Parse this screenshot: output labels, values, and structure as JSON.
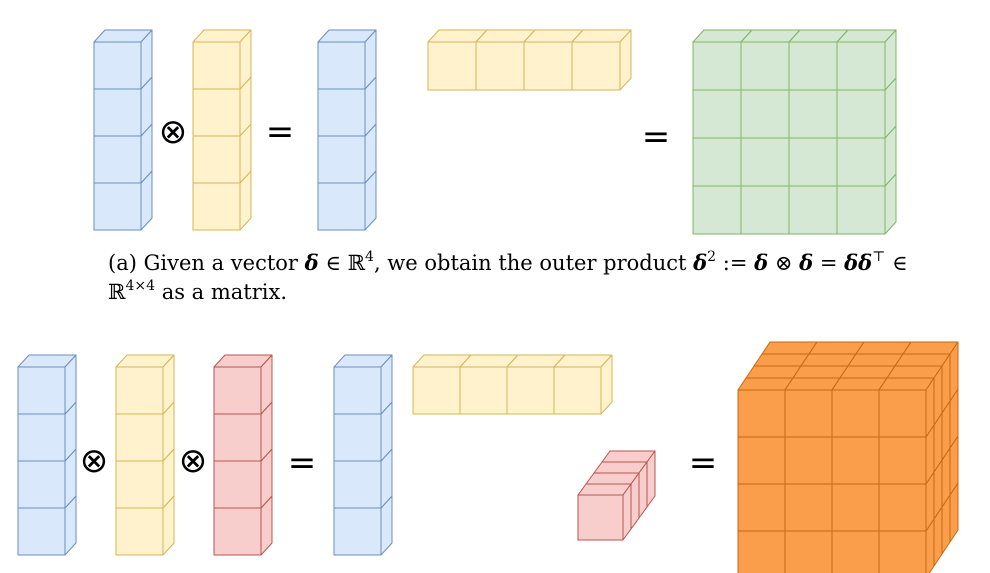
{
  "figure_a": {
    "caption_label": "(a)",
    "caption_line1_pre": "Given a vector",
    "symbol_delta": "δ",
    "symbol_in": "∈",
    "symbol_reals": "ℝ",
    "exp_4": "4",
    "caption_line1_mid": ", we obtain the outer product",
    "exp_2": "2",
    "symbol_defeq": ":=",
    "symbol_otimes": "⊗",
    "symbol_eq": "=",
    "symbol_delta_delta": "δδ",
    "exp_top": "⊤",
    "exp_4x4": "4×4",
    "caption_line2_post": "as a matrix.",
    "op_otimes": "⊗",
    "op_equals_1": "=",
    "op_equals_2": "="
  },
  "figure_b": {
    "op_otimes_1": "⊗",
    "op_otimes_2": "⊗",
    "op_equals_1": "=",
    "op_equals_2": "="
  },
  "colors": {
    "blue_face": "#dae8fc",
    "blue_stroke": "#6c8ebf",
    "yellow_face": "#fff2cc",
    "yellow_stroke": "#d6b656",
    "green_face": "#d5e8d4",
    "green_stroke": "#82b366",
    "red_face": "#f8cecc",
    "red_stroke": "#b85450",
    "orange_face": "#fa9e4b",
    "orange_stroke": "#c46a10"
  }
}
